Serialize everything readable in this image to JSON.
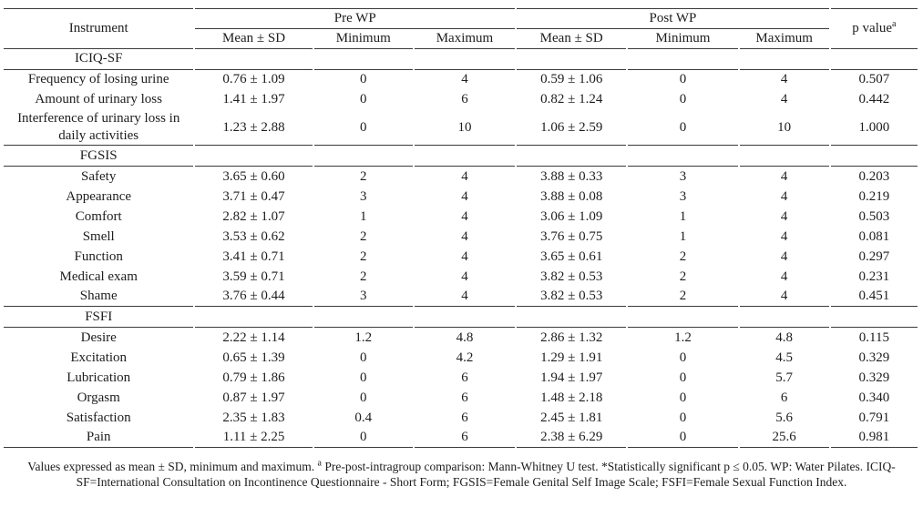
{
  "table": {
    "headers": {
      "instrument": "Instrument",
      "pre_group": "Pre WP",
      "post_group": "Post WP",
      "p_value": "p value",
      "p_value_sup": "a",
      "sub": [
        "Mean ± SD",
        "Minimum",
        "Maximum",
        "Mean ± SD",
        "Minimum",
        "Maximum"
      ]
    },
    "sections": [
      {
        "name": "ICIQ-SF",
        "rows": [
          {
            "label": "Frequency of losing urine",
            "values": [
              "0.76 ± 1.09",
              "0",
              "4",
              "0.59 ± 1.06",
              "0",
              "4",
              "0.507"
            ]
          },
          {
            "label": "Amount of urinary loss",
            "values": [
              "1.41 ± 1.97",
              "0",
              "6",
              "0.82 ± 1.24",
              "0",
              "4",
              "0.442"
            ]
          },
          {
            "label": "Interference of urinary loss in daily activities",
            "values": [
              "1.23 ± 2.88",
              "0",
              "10",
              "1.06 ± 2.59",
              "0",
              "10",
              "1.000"
            ]
          }
        ]
      },
      {
        "name": "FGSIS",
        "rows": [
          {
            "label": "Safety",
            "values": [
              "3.65 ± 0.60",
              "2",
              "4",
              "3.88 ± 0.33",
              "3",
              "4",
              "0.203"
            ]
          },
          {
            "label": "Appearance",
            "values": [
              "3.71 ± 0.47",
              "3",
              "4",
              "3.88 ± 0.08",
              "3",
              "4",
              "0.219"
            ]
          },
          {
            "label": "Comfort",
            "values": [
              "2.82 ± 1.07",
              "1",
              "4",
              "3.06 ± 1.09",
              "1",
              "4",
              "0.503"
            ]
          },
          {
            "label": "Smell",
            "values": [
              "3.53 ± 0.62",
              "2",
              "4",
              "3.76 ± 0.75",
              "1",
              "4",
              "0.081"
            ]
          },
          {
            "label": "Function",
            "values": [
              "3.41 ± 0.71",
              "2",
              "4",
              "3.65 ± 0.61",
              "2",
              "4",
              "0.297"
            ]
          },
          {
            "label": "Medical exam",
            "values": [
              "3.59 ± 0.71",
              "2",
              "4",
              "3.82 ± 0.53",
              "2",
              "4",
              "0.231"
            ]
          },
          {
            "label": "Shame",
            "values": [
              "3.76 ± 0.44",
              "3",
              "4",
              "3.82 ± 0.53",
              "2",
              "4",
              "0.451"
            ]
          }
        ]
      },
      {
        "name": "FSFI",
        "rows": [
          {
            "label": "Desire",
            "values": [
              "2.22 ± 1.14",
              "1.2",
              "4.8",
              "2.86 ± 1.32",
              "1.2",
              "4.8",
              "0.115"
            ]
          },
          {
            "label": "Excitation",
            "values": [
              "0.65 ± 1.39",
              "0",
              "4.2",
              "1.29 ± 1.91",
              "0",
              "4.5",
              "0.329"
            ]
          },
          {
            "label": "Lubrication",
            "values": [
              "0.79 ± 1.86",
              "0",
              "6",
              "1.94 ± 1.97",
              "0",
              "5.7",
              "0.329"
            ]
          },
          {
            "label": "Orgasm",
            "values": [
              "0.87 ± 1.97",
              "0",
              "6",
              "1.48 ± 2.18",
              "0",
              "6",
              "0.340"
            ]
          },
          {
            "label": "Satisfaction",
            "values": [
              "2.35 ± 1.83",
              "0.4",
              "6",
              "2.45 ± 1.81",
              "0",
              "5.6",
              "0.791"
            ]
          },
          {
            "label": "Pain",
            "values": [
              "1.11 ± 2.25",
              "0",
              "6",
              "2.38 ± 6.29",
              "0",
              "25.6",
              "0.981"
            ]
          }
        ]
      }
    ]
  },
  "footnote": {
    "before_sup": "Values expressed as mean ± SD, minimum and maximum. ",
    "sup": "a",
    "after_sup": " Pre-post-intragroup comparison: Mann-Whitney U test. *Statistically significant p ≤ 0.05. WP: Water Pilates. ICIQ-SF=International Consultation on Incontinence Questionnaire - Short Form; FGSIS=Female Genital Self Image Scale; FSFI=Female Sexual Function Index."
  }
}
